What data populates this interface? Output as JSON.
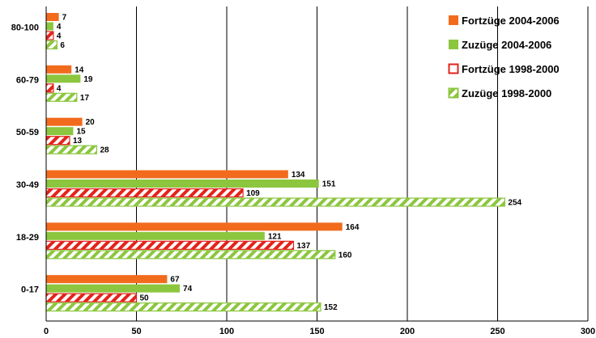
{
  "chart_data": {
    "type": "bar",
    "orientation": "horizontal",
    "categories": [
      "80-100",
      "60-79",
      "50-59",
      "30-49",
      "18-29",
      "0-17"
    ],
    "series": [
      {
        "name": "Fortzüge 2004-2006",
        "values": [
          7,
          14,
          20,
          134,
          164,
          67
        ],
        "color": "#F26B1D",
        "pattern": "solid"
      },
      {
        "name": "Zuzüge 2004-2006",
        "values": [
          4,
          19,
          15,
          151,
          121,
          74
        ],
        "color": "#8CC63F",
        "pattern": "solid"
      },
      {
        "name": "Fortzüge 1998-2000",
        "values": [
          4,
          4,
          13,
          109,
          137,
          50
        ],
        "color": "#E3231B",
        "pattern": "hatched"
      },
      {
        "name": "Zuzüge 1998-2000",
        "values": [
          6,
          17,
          28,
          254,
          160,
          152
        ],
        "color": "#8CC63F",
        "pattern": "hatched"
      }
    ],
    "xlim": [
      0,
      300
    ],
    "xticks": [
      0,
      50,
      100,
      150,
      200,
      250,
      300
    ],
    "grid": "vertical",
    "legend_position": "top-right"
  }
}
